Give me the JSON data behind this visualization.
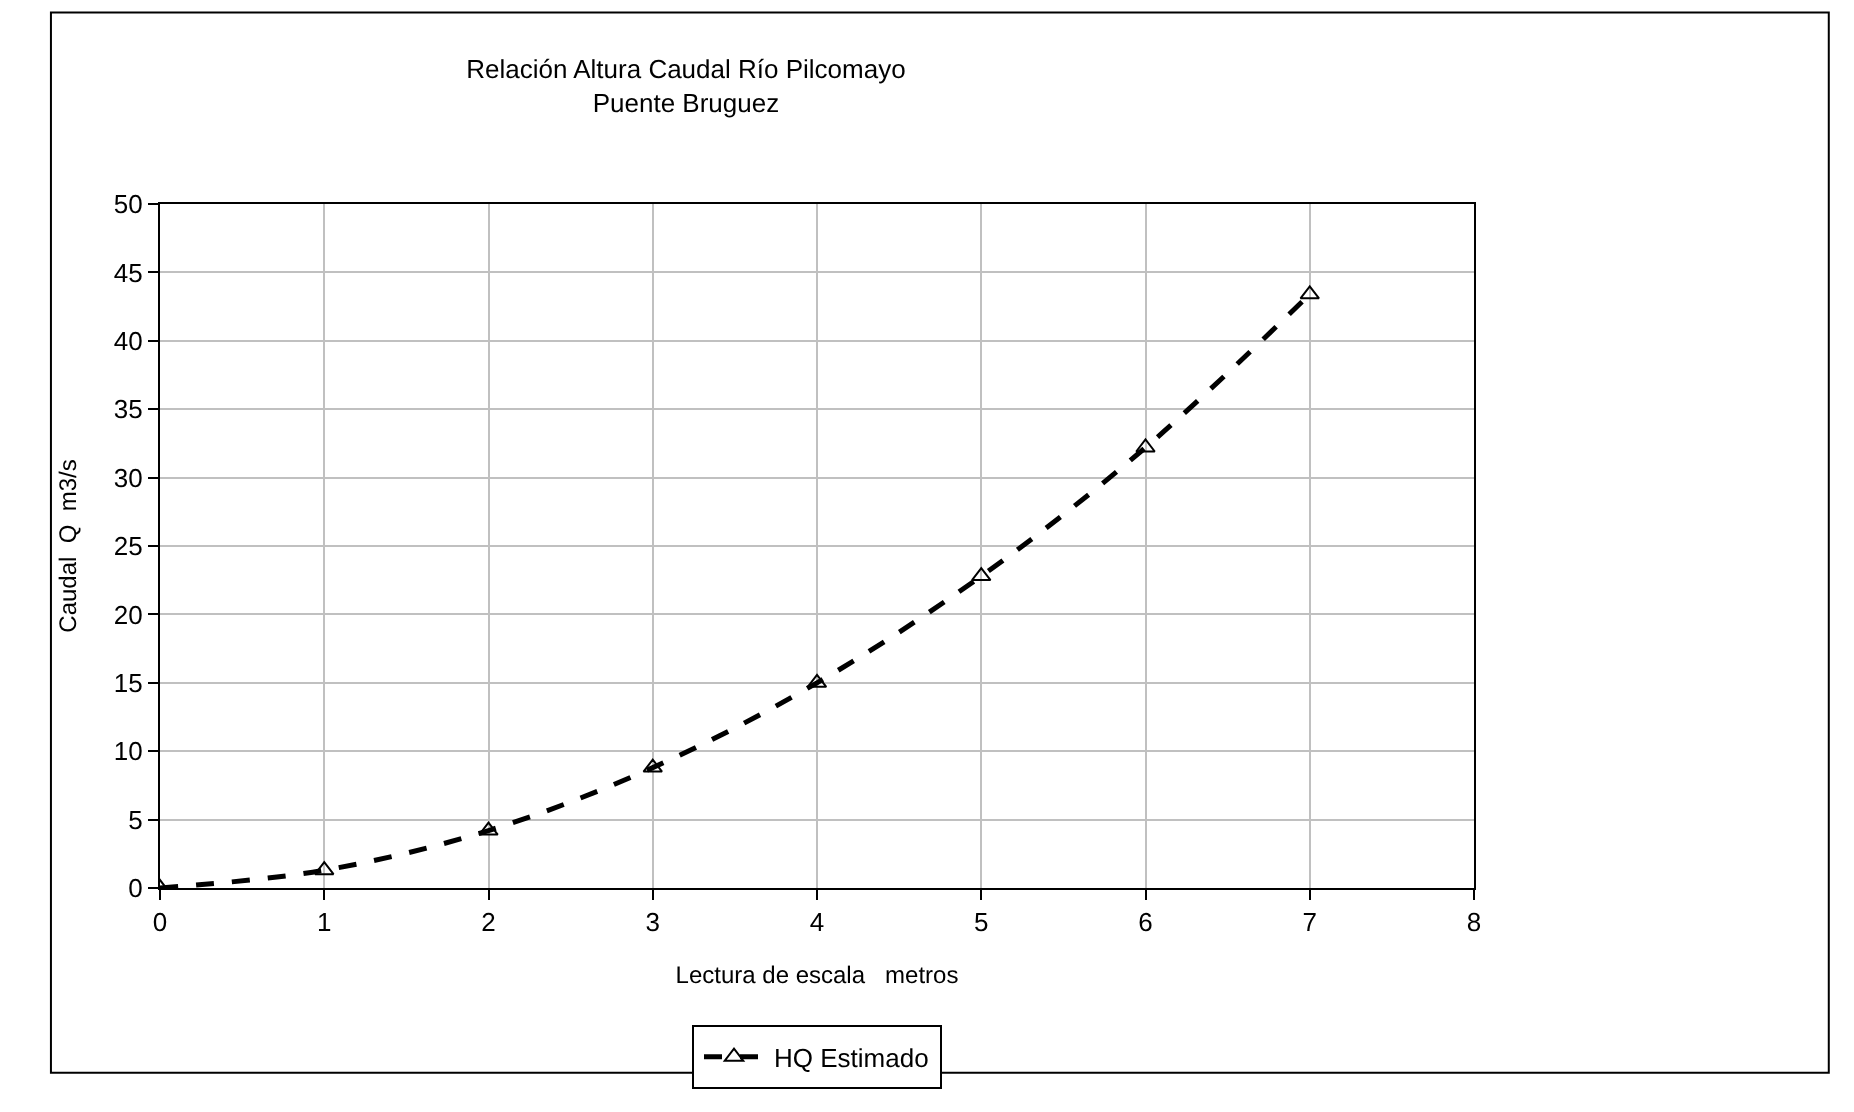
{
  "chart_data": {
    "type": "line",
    "title": "Relación Altura Caudal Río Pilcomayo\nPuente Bruguez",
    "xlabel": "Lectura de escala   metros",
    "ylabel": "Caudal  Q  m3/s",
    "x": [
      0,
      1,
      2,
      3,
      4,
      5,
      6,
      7
    ],
    "series": [
      {
        "name": "HQ Estimado",
        "color": "#000000",
        "values": [
          0,
          1.3,
          4.2,
          8.8,
          15.0,
          22.8,
          32.2,
          43.4
        ]
      }
    ],
    "xlim": [
      0,
      8
    ],
    "xticks": [
      0,
      1,
      2,
      3,
      4,
      5,
      6,
      7,
      8
    ],
    "ylim": [
      0,
      50
    ],
    "yticks": [
      0,
      5,
      10,
      15,
      20,
      25,
      30,
      35,
      40,
      45,
      50
    ],
    "grid": true,
    "legend": "bottom",
    "marker": "triangle",
    "line_style": "dashed"
  }
}
